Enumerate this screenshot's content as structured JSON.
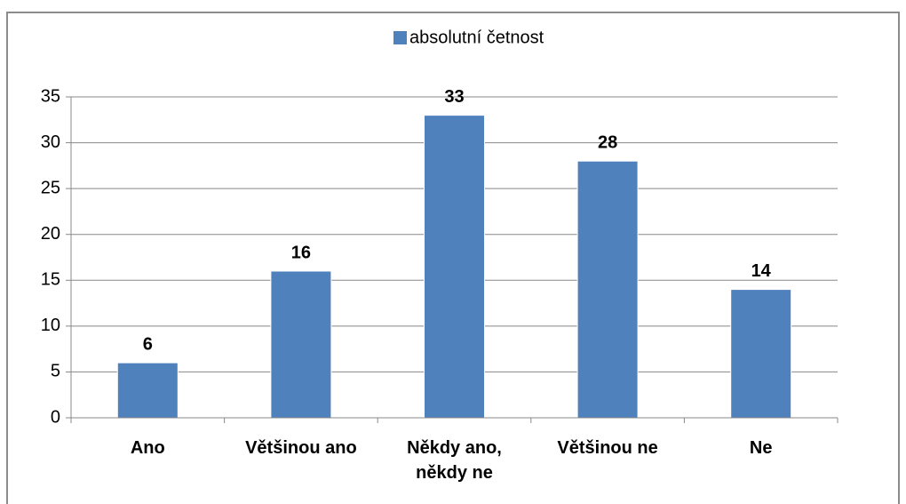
{
  "chart_data": {
    "type": "bar",
    "legend": "absolutní četnost",
    "categories": [
      "Ano",
      "Většinou ano",
      "Někdy ano, někdy ne",
      "Většinou ne",
      "Ne"
    ],
    "values": [
      6,
      16,
      33,
      28,
      14
    ],
    "color": "#4f81bd",
    "ylim": [
      0,
      35
    ],
    "yticks": [
      0,
      5,
      10,
      15,
      20,
      25,
      30,
      35
    ],
    "grid": true,
    "legend_position": "top"
  }
}
